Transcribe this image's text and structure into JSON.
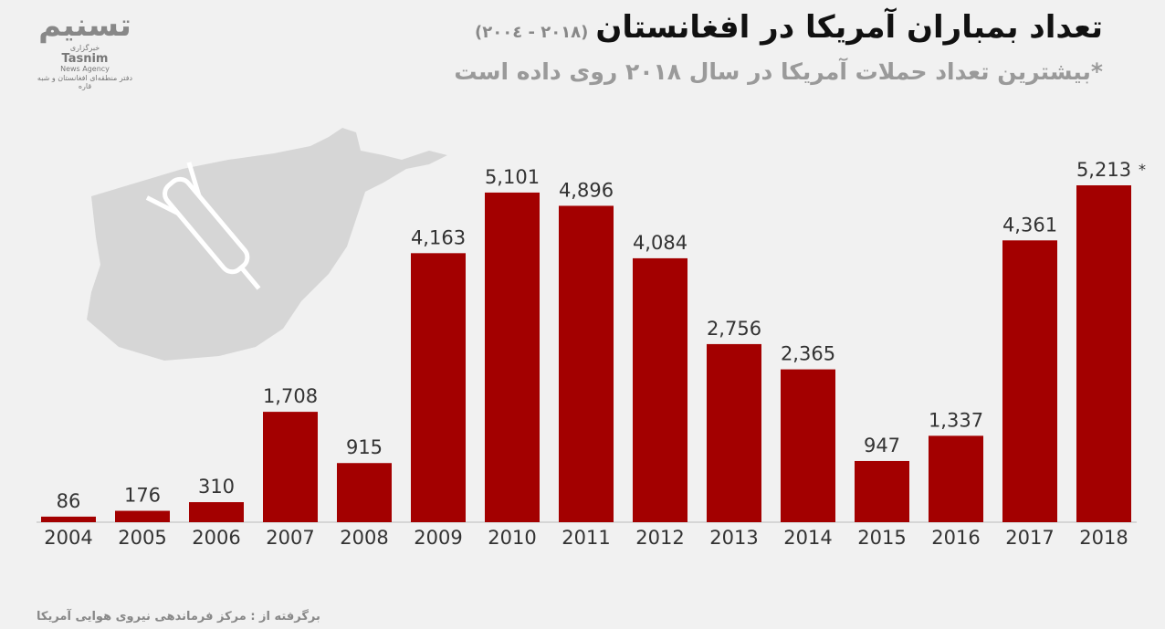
{
  "logo": {
    "mark": "تسنیم",
    "name": "Tasnim",
    "tagline": "News Agency",
    "agency_fa": "خبرگزاری",
    "office": "دفتر منطقه‌ای افغانستان و شبه قاره"
  },
  "chart_data": {
    "type": "bar",
    "title": "تعداد بمباران آمریکا در افغانستان",
    "title_range": "(۲۰۱۸ - ۲۰۰٤)",
    "subtitle": "*بیشترین تعداد حملات آمریکا در سال ۲۰۱۸ روی داده است",
    "categories": [
      "2004",
      "2005",
      "2006",
      "2007",
      "2008",
      "2009",
      "2010",
      "2011",
      "2012",
      "2013",
      "2014",
      "2015",
      "2016",
      "2017",
      "2018"
    ],
    "values": [
      86,
      176,
      310,
      1708,
      915,
      4163,
      5101,
      4896,
      4084,
      2756,
      2365,
      947,
      1337,
      4361,
      5213
    ],
    "labels": [
      "86",
      "176",
      "310",
      "1,708",
      "915",
      "4,163",
      "5,101",
      "4,896",
      "4,084",
      "2,756",
      "2,365",
      "947",
      "1,337",
      "4,361",
      "5,213"
    ],
    "annotation": "*",
    "xlabel": "",
    "ylabel": "",
    "ylim": [
      0,
      5213
    ],
    "grid": false,
    "bar_color": "#a30000",
    "source": "برگرفته از : مرکز فرماندهی نیروی هوایی آمریکا"
  }
}
